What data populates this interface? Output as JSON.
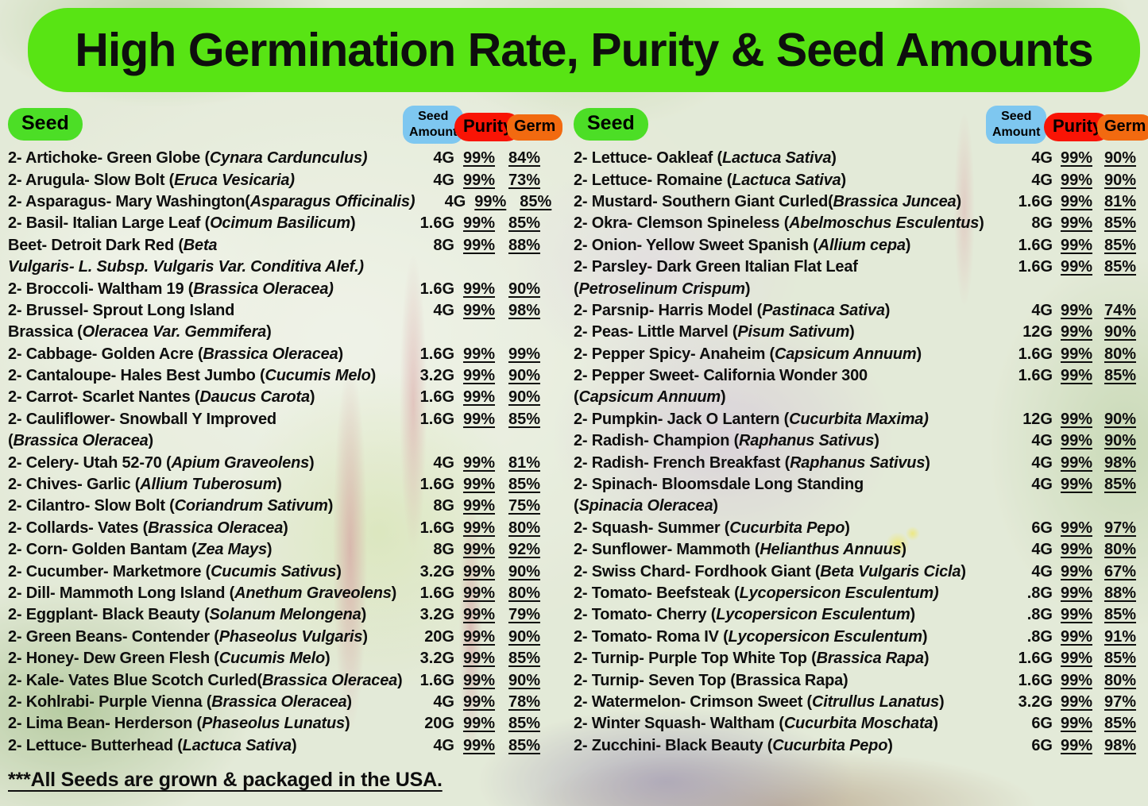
{
  "title": "High Germination Rate, Purity & Seed Amounts",
  "colors": {
    "banner_green": "#58E414",
    "seed_pill_green": "#4CDE26",
    "amount_pill_blue": "#7EC7F0",
    "purity_pill_red": "#F91405",
    "germ_pill_orange": "#F26A10",
    "text": "#0e0e0e"
  },
  "header": {
    "seed": "Seed",
    "amount_line1": "Seed",
    "amount_line2": "Amount",
    "purity": "Purity",
    "germ": "Germ"
  },
  "footer": "***All Seeds are grown & packaged in the USA.",
  "table": {
    "left": [
      {
        "line1": [
          [
            "2- Artichoke- Green Globe (",
            0
          ],
          [
            "Cynara Cardunculus)",
            1
          ]
        ],
        "amount": "4G",
        "purity": "99%",
        "germ": "84%"
      },
      {
        "line1": [
          [
            "2- Arugula- Slow Bolt (",
            0
          ],
          [
            "Eruca Vesicaria)",
            1
          ]
        ],
        "amount": "4G",
        "purity": "99%",
        "germ": "73%"
      },
      {
        "line1": [
          [
            "2- Asparagus- Mary Washington(",
            0
          ],
          [
            "Asparagus Officinalis)",
            1
          ]
        ],
        "amount": "4G",
        "purity": "99%",
        "germ": "85%"
      },
      {
        "line1": [
          [
            "2- Basil- Italian Large Leaf (",
            0
          ],
          [
            "Ocimum Basilicum",
            1
          ],
          [
            ")",
            0
          ]
        ],
        "amount": "1.6G",
        "purity": "99%",
        "germ": "85%"
      },
      {
        "line1": [
          [
            "Beet- Detroit Dark Red (",
            0
          ],
          [
            "Beta",
            1
          ]
        ],
        "line2": [
          [
            "Vulgaris- L. Subsp. Vulgaris Var. Conditiva Alef.)",
            1
          ]
        ],
        "amount": "8G",
        "purity": "99%",
        "germ": "88%"
      },
      {
        "line1": [
          [
            "2- Broccoli- Waltham 19 (",
            0
          ],
          [
            "Brassica Oleracea)",
            1
          ]
        ],
        "amount": "1.6G",
        "purity": "99%",
        "germ": "90%"
      },
      {
        "line1": [
          [
            "2- Brussel- Sprout Long Island",
            0
          ]
        ],
        "line2": [
          [
            "Brassica (",
            0
          ],
          [
            "Oleracea Var. Gemmifera",
            1
          ],
          [
            ")",
            0
          ]
        ],
        "amount": "4G",
        "purity": "99%",
        "germ": "98%"
      },
      {
        "line1": [
          [
            "2- Cabbage- Golden Acre (",
            0
          ],
          [
            "Brassica Oleracea",
            1
          ],
          [
            ")",
            0
          ]
        ],
        "amount": "1.6G",
        "purity": "99%",
        "germ": "99%"
      },
      {
        "line1": [
          [
            "2- Cantaloupe- Hales Best Jumbo (",
            0
          ],
          [
            "Cucumis Melo",
            1
          ],
          [
            ")",
            0
          ]
        ],
        "amount": "3.2G",
        "purity": "99%",
        "germ": "90%"
      },
      {
        "line1": [
          [
            "2- Carrot- Scarlet Nantes (",
            0
          ],
          [
            "Daucus Carota",
            1
          ],
          [
            ")",
            0
          ]
        ],
        "amount": "1.6G",
        "purity": "99%",
        "germ": "90%"
      },
      {
        "line1": [
          [
            "2- Cauliflower- Snowball Y Improved",
            0
          ]
        ],
        "line2": [
          [
            "(",
            0
          ],
          [
            "Brassica Oleracea",
            1
          ],
          [
            ")",
            0
          ]
        ],
        "amount": "1.6G",
        "purity": "99%",
        "germ": "85%"
      },
      {
        "line1": [
          [
            "2- Celery- Utah 52-70 (",
            0
          ],
          [
            "Apium Graveolens",
            1
          ],
          [
            ")",
            0
          ]
        ],
        "amount": "4G",
        "purity": "99%",
        "germ": "81%"
      },
      {
        "line1": [
          [
            "2- Chives- Garlic (",
            0
          ],
          [
            "Allium Tuberosum",
            1
          ],
          [
            ")",
            0
          ]
        ],
        "amount": "1.6G",
        "purity": "99%",
        "germ": "85%"
      },
      {
        "line1": [
          [
            "2- Cilantro- Slow Bolt (",
            0
          ],
          [
            "Coriandrum Sativum",
            1
          ],
          [
            ")",
            0
          ]
        ],
        "amount": "8G",
        "purity": "99%",
        "germ": "75%"
      },
      {
        "line1": [
          [
            "2- Collards- Vates (",
            0
          ],
          [
            "Brassica Oleracea",
            1
          ],
          [
            ")",
            0
          ]
        ],
        "amount": "1.6G",
        "purity": "99%",
        "germ": "80%"
      },
      {
        "line1": [
          [
            "2- Corn- Golden Bantam (",
            0
          ],
          [
            "Zea Mays",
            1
          ],
          [
            ")",
            0
          ]
        ],
        "amount": "8G",
        "purity": "99%",
        "germ": "92%"
      },
      {
        "line1": [
          [
            "2- Cucumber- Marketmore (",
            0
          ],
          [
            "Cucumis Sativus",
            1
          ],
          [
            ")",
            0
          ]
        ],
        "amount": "3.2G",
        "purity": "99%",
        "germ": "90%"
      },
      {
        "line1": [
          [
            "2- Dill- Mammoth Long Island (",
            0
          ],
          [
            "Anethum Graveolens",
            1
          ],
          [
            ")",
            0
          ]
        ],
        "amount": "1.6G",
        "purity": "99%",
        "germ": "80%"
      },
      {
        "line1": [
          [
            "2- Eggplant- Black Beauty (",
            0
          ],
          [
            "Solanum Melongena",
            1
          ],
          [
            ")",
            0
          ]
        ],
        "amount": "3.2G",
        "purity": "99%",
        "germ": "79%"
      },
      {
        "line1": [
          [
            "2- Green Beans- Contender (",
            0
          ],
          [
            "Phaseolus Vulgaris",
            1
          ],
          [
            ")",
            0
          ]
        ],
        "amount": "20G",
        "purity": "99%",
        "germ": "90%"
      },
      {
        "line1": [
          [
            "2- Honey- Dew Green Flesh (",
            0
          ],
          [
            "Cucumis Melo",
            1
          ],
          [
            ")",
            0
          ]
        ],
        "amount": "3.2G",
        "purity": "99%",
        "germ": "85%"
      },
      {
        "line1": [
          [
            "2- Kale- Vates Blue Scotch Curled(",
            0
          ],
          [
            "Brassica Oleracea",
            1
          ],
          [
            ")",
            0
          ]
        ],
        "amount": "1.6G",
        "purity": "99%",
        "germ": "90%"
      },
      {
        "line1": [
          [
            "2- Kohlrabi- Purple Vienna (",
            0
          ],
          [
            "Brassica Oleracea",
            1
          ],
          [
            ")",
            0
          ]
        ],
        "amount": "4G",
        "purity": "99%",
        "germ": "78%"
      },
      {
        "line1": [
          [
            "2- Lima Bean- Herderson (",
            0
          ],
          [
            "Phaseolus Lunatus",
            1
          ],
          [
            ")",
            0
          ]
        ],
        "amount": "20G",
        "purity": "99%",
        "germ": "85%"
      },
      {
        "line1": [
          [
            "2- Lettuce- Butterhead (",
            0
          ],
          [
            "Lactuca Sativa",
            1
          ],
          [
            ")",
            0
          ]
        ],
        "amount": "4G",
        "purity": "99%",
        "germ": "85%"
      }
    ],
    "right": [
      {
        "line1": [
          [
            "2- Lettuce- Oakleaf (",
            0
          ],
          [
            "Lactuca Sativa",
            1
          ],
          [
            ")",
            0
          ]
        ],
        "amount": "4G",
        "purity": "99%",
        "germ": "90%"
      },
      {
        "line1": [
          [
            "2- Lettuce- Romaine (",
            0
          ],
          [
            "Lactuca Sativa",
            1
          ],
          [
            ")",
            0
          ]
        ],
        "amount": "4G",
        "purity": "99%",
        "germ": "90%"
      },
      {
        "line1": [
          [
            "2- Mustard-  Southern Giant Curled(",
            0
          ],
          [
            "Brassica Juncea",
            1
          ],
          [
            ")",
            0
          ]
        ],
        "amount": "1.6G",
        "purity": "99%",
        "germ": "81%"
      },
      {
        "line1": [
          [
            "2- Okra- Clemson Spineless (",
            0
          ],
          [
            "Abelmoschus Esculentus",
            1
          ],
          [
            ")",
            0
          ]
        ],
        "amount": "8G",
        "purity": "99%",
        "germ": "85%"
      },
      {
        "line1": [
          [
            "2- Onion- Yellow Sweet Spanish (",
            0
          ],
          [
            "Allium cepa",
            1
          ],
          [
            ")",
            0
          ]
        ],
        "amount": "1.6G",
        "purity": "99%",
        "germ": "85%"
      },
      {
        "line1": [
          [
            "2- Parsley- Dark Green Italian Flat Leaf",
            0
          ]
        ],
        "line2": [
          [
            "(",
            0
          ],
          [
            "Petroselinum Crispum",
            1
          ],
          [
            ")",
            0
          ]
        ],
        "amount": "1.6G",
        "purity": "99%",
        "germ": "85%"
      },
      {
        "line1": [
          [
            "2- Parsnip- Harris Model (",
            0
          ],
          [
            "Pastinaca Sativa",
            1
          ],
          [
            ")",
            0
          ]
        ],
        "amount": "4G",
        "purity": "99%",
        "germ": "74%"
      },
      {
        "line1": [
          [
            "2- Peas- Little Marvel (",
            0
          ],
          [
            "Pisum Sativum",
            1
          ],
          [
            ")",
            0
          ]
        ],
        "amount": "12G",
        "purity": "99%",
        "germ": "90%"
      },
      {
        "line1": [
          [
            "2- Pepper Spicy- Anaheim (",
            0
          ],
          [
            "Capsicum Annuum",
            1
          ],
          [
            ")",
            0
          ]
        ],
        "amount": "1.6G",
        "purity": "99%",
        "germ": "80%"
      },
      {
        "line1": [
          [
            "2- Pepper Sweet- California Wonder 300",
            0
          ]
        ],
        "line2": [
          [
            "(",
            0
          ],
          [
            "Capsicum Annuum",
            1
          ],
          [
            ")",
            0
          ]
        ],
        "amount": "1.6G",
        "purity": "99%",
        "germ": "85%"
      },
      {
        "line1": [
          [
            "2- Pumpkin- Jack O Lantern (",
            0
          ],
          [
            "Cucurbita Maxima)",
            1
          ]
        ],
        "amount": "12G",
        "purity": "99%",
        "germ": "90%"
      },
      {
        "line1": [
          [
            "2- Radish- Champion (",
            0
          ],
          [
            "Raphanus Sativus",
            1
          ],
          [
            ")",
            0
          ]
        ],
        "amount": "4G",
        "purity": "99%",
        "germ": "90%"
      },
      {
        "line1": [
          [
            "2- Radish- French Breakfast (",
            0
          ],
          [
            "Raphanus Sativus",
            1
          ],
          [
            ")",
            0
          ]
        ],
        "amount": "4G",
        "purity": "99%",
        "germ": "98%"
      },
      {
        "line1": [
          [
            "2- Spinach- Bloomsdale Long Standing",
            0
          ]
        ],
        "line2": [
          [
            "(",
            0
          ],
          [
            "Spinacia Oleracea",
            1
          ],
          [
            ")",
            0
          ]
        ],
        "amount": "4G",
        "purity": "99%",
        "germ": "85%"
      },
      {
        "line1": [
          [
            "2- Squash- Summer (",
            0
          ],
          [
            "Cucurbita Pepo",
            1
          ],
          [
            ")",
            0
          ]
        ],
        "amount": "6G",
        "purity": "99%",
        "germ": "97%"
      },
      {
        "line1": [
          [
            "2- Sunflower- Mammoth (",
            0
          ],
          [
            "Helianthus Annuus",
            1
          ],
          [
            ")",
            0
          ]
        ],
        "amount": "4G",
        "purity": "99%",
        "germ": "80%"
      },
      {
        "line1": [
          [
            "2- Swiss Chard- Fordhook Giant (",
            0
          ],
          [
            "Beta Vulgaris Cicla",
            1
          ],
          [
            ")",
            0
          ]
        ],
        "amount": "4G",
        "purity": "99%",
        "germ": "67%"
      },
      {
        "line1": [
          [
            "2- Tomato- Beefsteak (",
            0
          ],
          [
            "Lycopersicon Esculentum)",
            1
          ]
        ],
        "amount": ".8G",
        "purity": "99%",
        "germ": "88%"
      },
      {
        "line1": [
          [
            "2- Tomato- Cherry (",
            0
          ],
          [
            "Lycopersicon Esculentum",
            1
          ],
          [
            ")",
            0
          ]
        ],
        "amount": ".8G",
        "purity": "99%",
        "germ": "85%"
      },
      {
        "line1": [
          [
            "2- Tomato- Roma IV  (",
            0
          ],
          [
            "Lycopersicon Esculentum",
            1
          ],
          [
            ")",
            0
          ]
        ],
        "amount": ".8G",
        "purity": "99%",
        "germ": "91%"
      },
      {
        "line1": [
          [
            "2- Turnip- Purple Top White Top (",
            0
          ],
          [
            "Brassica Rapa",
            1
          ],
          [
            ")",
            0
          ]
        ],
        "amount": "1.6G",
        "purity": "99%",
        "germ": "85%"
      },
      {
        "line1": [
          [
            "2- Turnip- Seven Top (Brassica Rapa)",
            0
          ]
        ],
        "amount": "1.6G",
        "purity": "99%",
        "germ": "80%"
      },
      {
        "line1": [
          [
            "2- Watermelon- Crimson Sweet (",
            0
          ],
          [
            "Citrullus Lanatus",
            1
          ],
          [
            ")",
            0
          ]
        ],
        "amount": "3.2G",
        "purity": "99%",
        "germ": "97%"
      },
      {
        "line1": [
          [
            "2- Winter Squash- Waltham (",
            0
          ],
          [
            "Cucurbita Moschata",
            1
          ],
          [
            ")",
            0
          ]
        ],
        "amount": "6G",
        "purity": "99%",
        "germ": "85%"
      },
      {
        "line1": [
          [
            "2- Zucchini-  Black Beauty (",
            0
          ],
          [
            "Cucurbita Pepo",
            1
          ],
          [
            ")",
            0
          ]
        ],
        "amount": "6G",
        "purity": "99%",
        "germ": "98%"
      }
    ]
  }
}
